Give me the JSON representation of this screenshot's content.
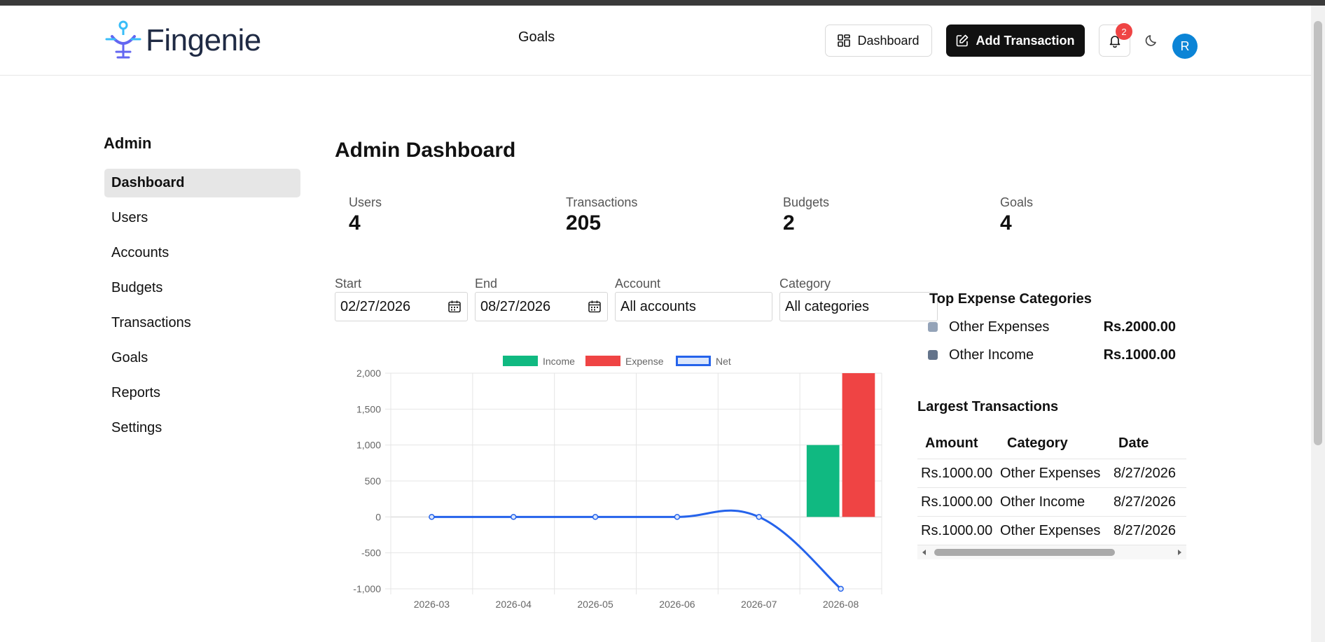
{
  "app": {
    "brand": "Fingenie",
    "nav_goals": "Goals",
    "dashboard_btn": "Dashboard",
    "add_btn": "Add Transaction",
    "notifications": "2",
    "avatar_initial": "R"
  },
  "sidebar": {
    "title": "Admin",
    "items": [
      {
        "label": "Dashboard",
        "active": true
      },
      {
        "label": "Users"
      },
      {
        "label": "Accounts"
      },
      {
        "label": "Budgets"
      },
      {
        "label": "Transactions"
      },
      {
        "label": "Goals"
      },
      {
        "label": "Reports"
      },
      {
        "label": "Settings"
      }
    ]
  },
  "main": {
    "title": "Admin Dashboard",
    "stats": [
      {
        "label": "Users",
        "value": "4"
      },
      {
        "label": "Transactions",
        "value": "205"
      },
      {
        "label": "Budgets",
        "value": "2"
      },
      {
        "label": "Goals",
        "value": "4"
      }
    ],
    "filters": {
      "start_label": "Start",
      "start_value": "02/27/2026",
      "end_label": "End",
      "end_value": "08/27/2026",
      "account_label": "Account",
      "account_value": "All accounts",
      "category_label": "Category",
      "category_value": "All categories"
    }
  },
  "chart_data": {
    "type": "bar",
    "categories": [
      "2026-03",
      "2026-04",
      "2026-05",
      "2026-06",
      "2026-07",
      "2026-08"
    ],
    "series": [
      {
        "name": "Income",
        "type": "bar",
        "color": "#10b981",
        "values": [
          0,
          0,
          0,
          0,
          0,
          1000
        ]
      },
      {
        "name": "Expense",
        "type": "bar",
        "color": "#ef4444",
        "values": [
          0,
          0,
          0,
          0,
          0,
          2000
        ]
      },
      {
        "name": "Net",
        "type": "line",
        "color": "#2563eb",
        "values": [
          0,
          0,
          0,
          0,
          0,
          -1000
        ]
      }
    ],
    "yticks": [
      "2,000",
      "1,500",
      "1,000",
      "500",
      "0",
      "-500",
      "-1,000"
    ],
    "ylim": [
      -1000,
      2000
    ],
    "legend_position": "top",
    "grid": true
  },
  "top_expense": {
    "title": "Top Expense Categories",
    "items": [
      {
        "name": "Other Expenses",
        "value": "Rs.2000.00",
        "color": "#94a3b8"
      },
      {
        "name": "Other Income",
        "value": "Rs.1000.00",
        "color": "#64748b"
      }
    ]
  },
  "largest": {
    "title": "Largest Transactions",
    "headers": [
      "Amount",
      "Category",
      "Date"
    ],
    "rows": [
      [
        "Rs.1000.00",
        "Other Expenses",
        "8/27/2026"
      ],
      [
        "Rs.1000.00",
        "Other Income",
        "8/27/2026"
      ],
      [
        "Rs.1000.00",
        "Other Expenses",
        "8/27/2026"
      ]
    ]
  }
}
